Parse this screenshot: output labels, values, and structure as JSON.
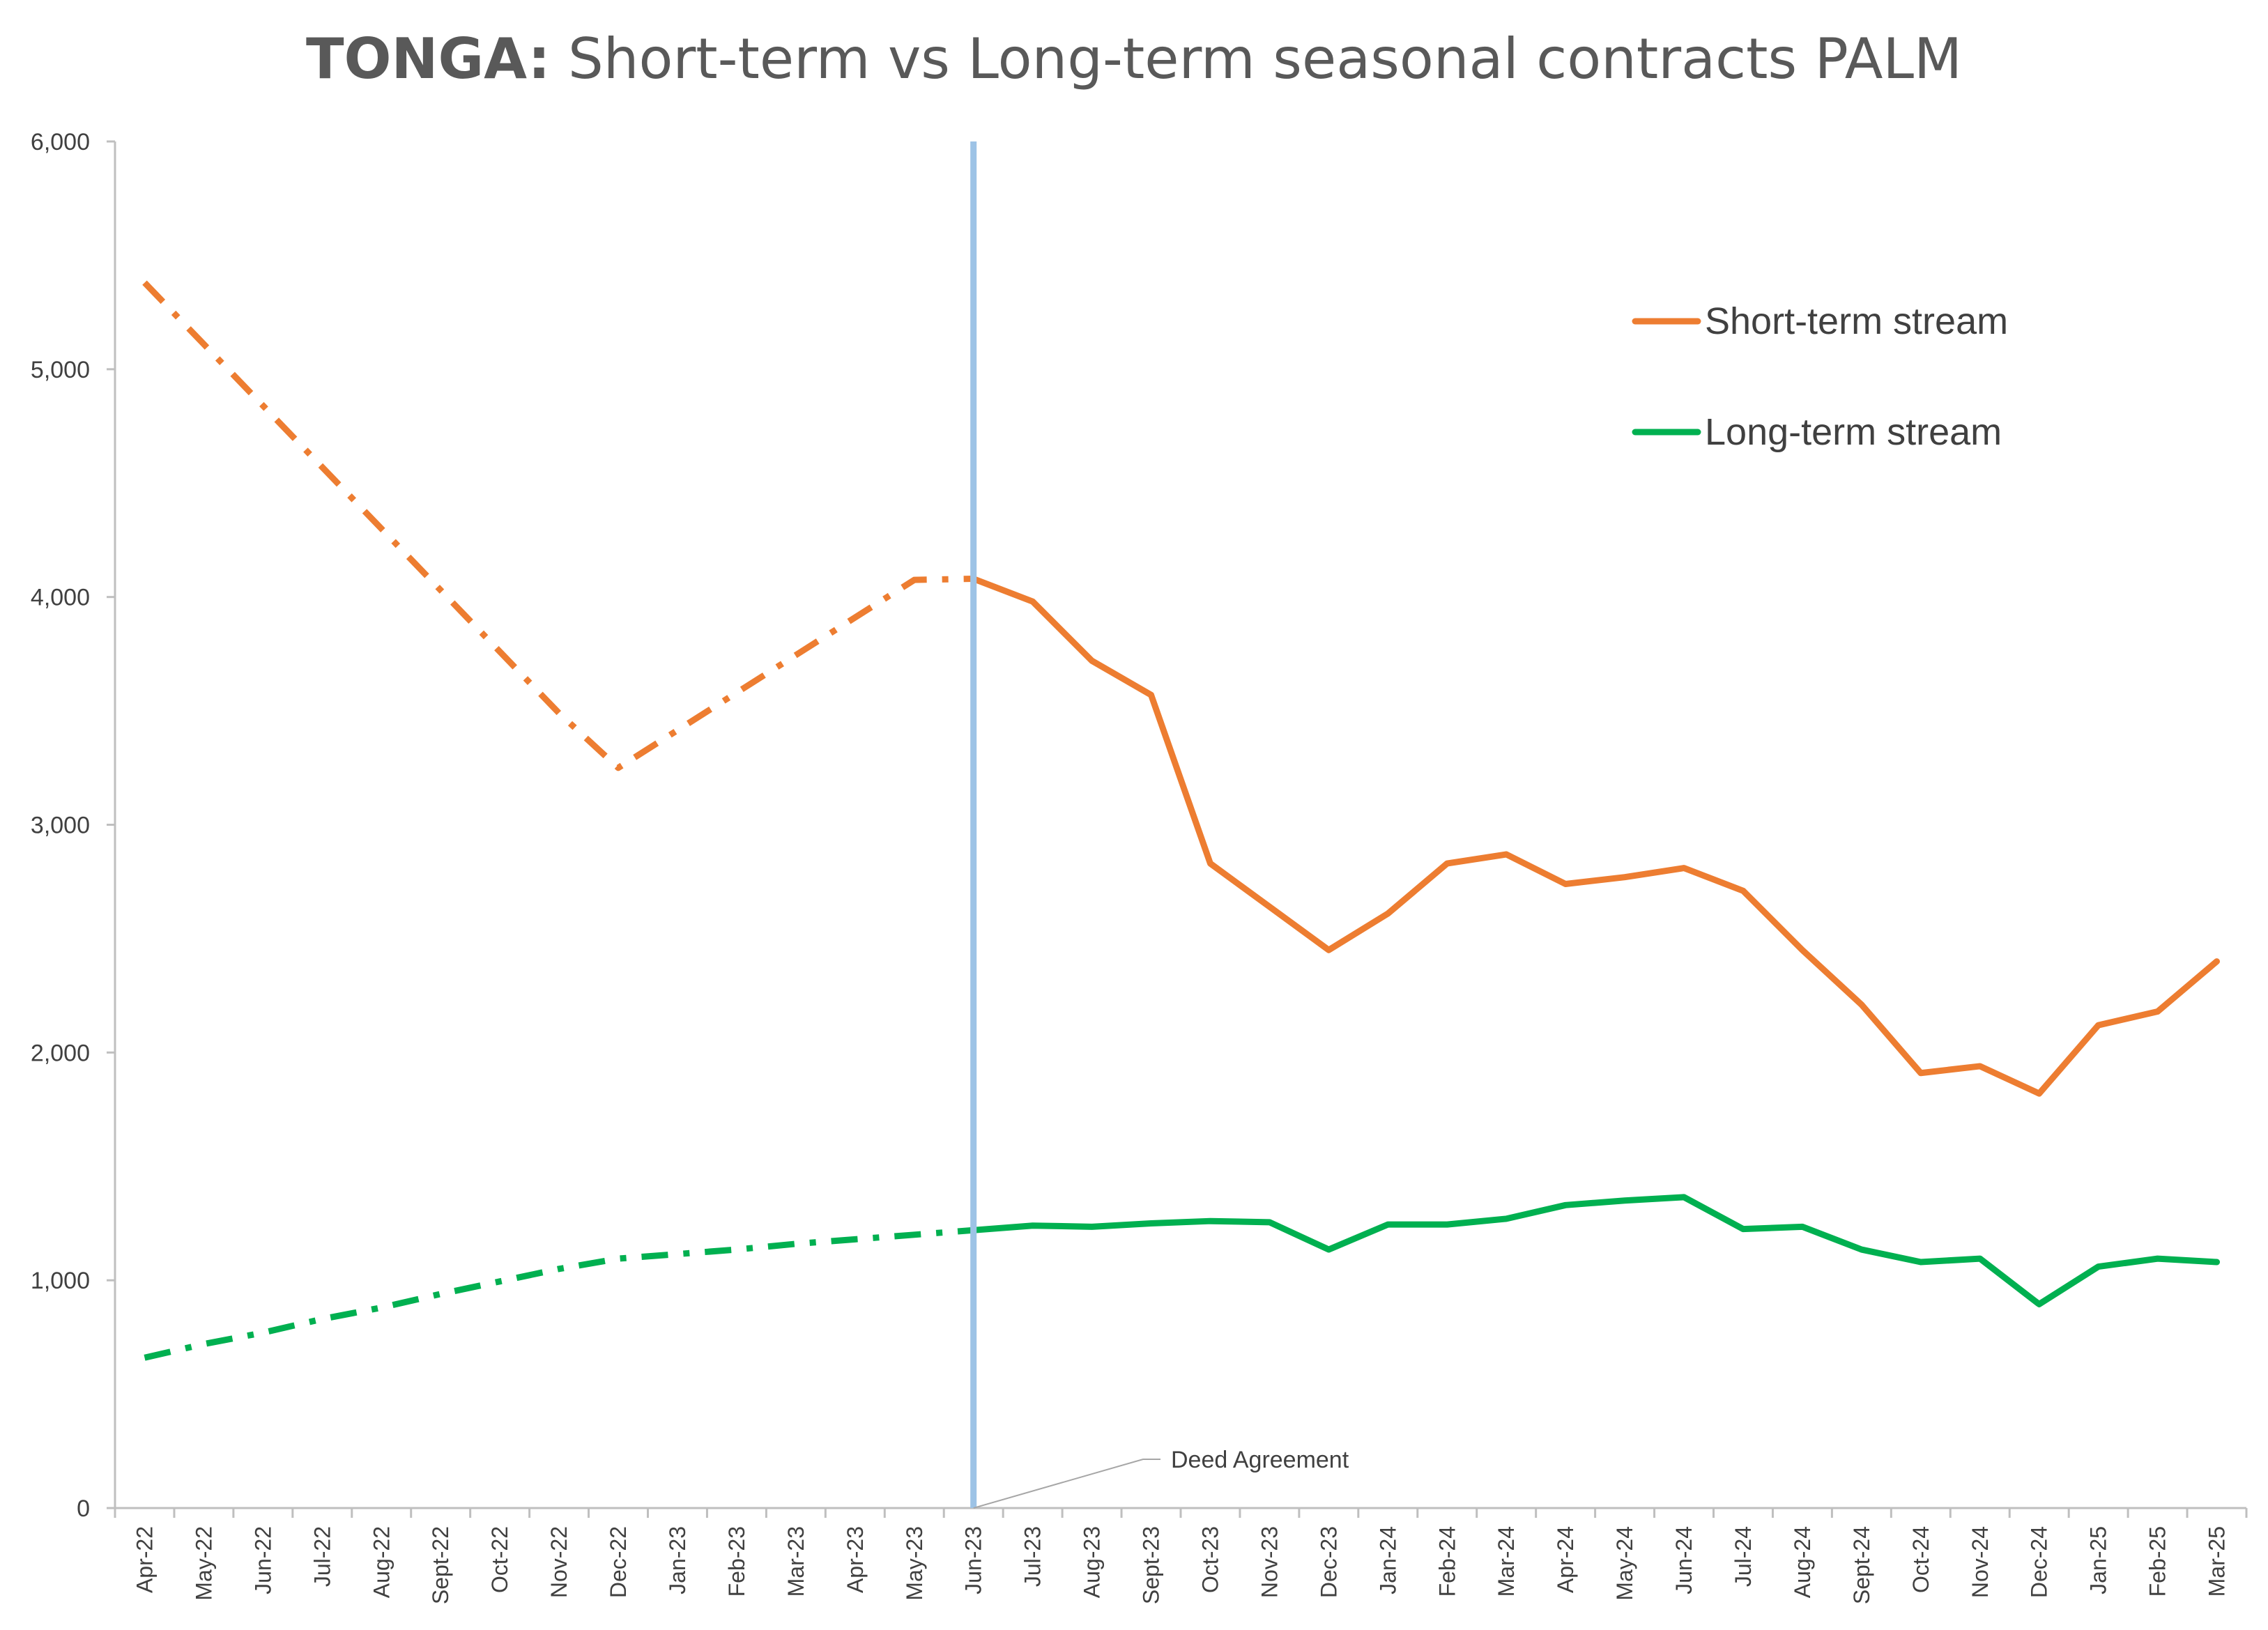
{
  "chart_data": {
    "type": "line",
    "title": "TONGA:  Short-term vs Long-term seasonal contracts PALM",
    "title_bold_part": "TONGA:",
    "title_rest": "  Short-term vs Long-term seasonal contracts PALM",
    "xlabel": "",
    "ylabel": "",
    "ylim": [
      0,
      6000
    ],
    "yticks": [
      0,
      1000,
      2000,
      3000,
      4000,
      5000,
      6000
    ],
    "ytick_labels": [
      "0",
      "1,000",
      "2,000",
      "3,000",
      "4,000",
      "5,000",
      "6,000"
    ],
    "grid": false,
    "legend_position": "top-right",
    "categories": [
      "Apr-22",
      "May-22",
      "Jun-22",
      "Jul-22",
      "Aug-22",
      "Sept-22",
      "Oct-22",
      "Nov-22",
      "Dec-22",
      "Jan-23",
      "Feb-23",
      "Mar-23",
      "Apr-23",
      "May-23",
      "Jun-23",
      "Jul-23",
      "Aug-23",
      "Sept-23",
      "Oct-23",
      "Nov-23",
      "Dec-23",
      "Jan-24",
      "Feb-24",
      "Mar-24",
      "Apr-24",
      "May-24",
      "Jun-24",
      "Jul-24",
      "Aug-24",
      "Sept-24",
      "Oct-24",
      "Nov-24",
      "Dec-24",
      "Jan-25",
      "Feb-25",
      "Mar-25"
    ],
    "series": [
      {
        "name": "Short-term stream",
        "color": "#ED7D31",
        "style_before_marker": "dash-dot",
        "values": [
          5380,
          5110,
          4840,
          4570,
          4300,
          4030,
          3760,
          3490,
          3250,
          3415,
          3580,
          3745,
          3910,
          4075,
          4080,
          3980,
          3720,
          3570,
          2830,
          2640,
          2450,
          2610,
          2830,
          2870,
          2740,
          2770,
          2810,
          2710,
          2450,
          2210,
          1910,
          1940,
          1820,
          2120,
          2180,
          2400
        ]
      },
      {
        "name": "Long-term stream",
        "color": "#00B050",
        "style_before_marker": "dash-dot",
        "values": [
          660,
          720,
          770,
          830,
          880,
          940,
          995,
          1050,
          1095,
          1115,
          1135,
          1160,
          1180,
          1200,
          1220,
          1240,
          1235,
          1250,
          1260,
          1255,
          1135,
          1245,
          1245,
          1270,
          1330,
          1350,
          1365,
          1225,
          1235,
          1135,
          1080,
          1095,
          895,
          1060,
          1095,
          1080
        ]
      }
    ],
    "vertical_marker": {
      "category": "Jun-23",
      "label": "Deed Agreement",
      "color": "#9DC3E6"
    }
  }
}
